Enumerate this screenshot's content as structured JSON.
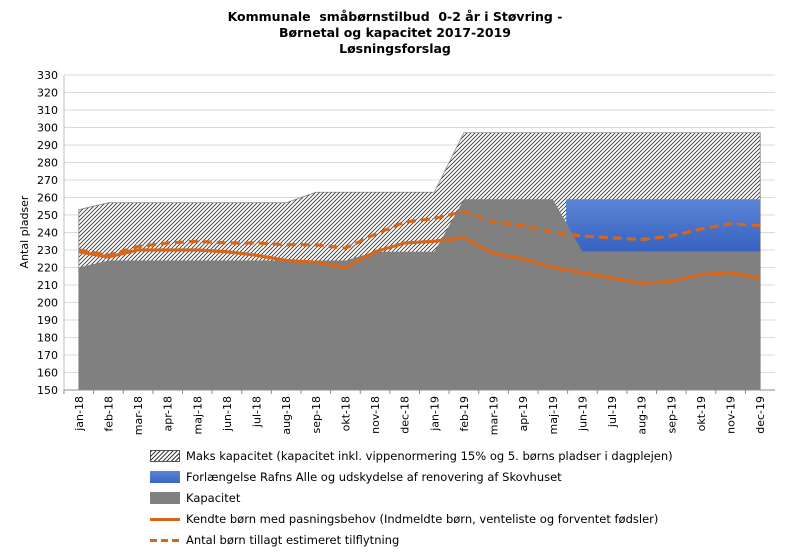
{
  "title_lines": [
    "Kommunale  småbørnstilbud  0-2 år i Støvring -",
    "Børnetal og kapacitet 2017-2019",
    "Løsningsforslag"
  ],
  "chart_data": {
    "type": "area",
    "title": "Kommunale småbørnstilbud 0-2 år i Støvring - Børnetal og kapacitet 2017-2019 Løsningsforslag",
    "ylabel": "Antal pladser",
    "xlabel": "",
    "ylim": [
      150,
      330
    ],
    "yticks": [
      150,
      160,
      170,
      180,
      190,
      200,
      210,
      220,
      230,
      240,
      250,
      260,
      270,
      280,
      290,
      300,
      310,
      320,
      330
    ],
    "grid": true,
    "legend_position": "bottom",
    "categories": [
      "jan-18",
      "feb-18",
      "mar-18",
      "apr-18",
      "maj-18",
      "jun-18",
      "jul-18",
      "aug-18",
      "sep-18",
      "okt-18",
      "nov-18",
      "dec-18",
      "jan-19",
      "feb-19",
      "mar-19",
      "apr-19",
      "maj-19",
      "jun-19",
      "jul-19",
      "aug-19",
      "sep-19",
      "okt-19",
      "nov-19",
      "dec-19"
    ],
    "series": [
      {
        "name": "Maks kapacitet (kapacitet inkl. vippenormering 15% og 5. børns pladser i dagplejen)",
        "kind": "area-hatched",
        "color": "#3a3a3a",
        "values": [
          253,
          257,
          257,
          257,
          257,
          257,
          257,
          257,
          263,
          263,
          263,
          263,
          263,
          297,
          297,
          297,
          297,
          297,
          297,
          297,
          297,
          297,
          297,
          297
        ]
      },
      {
        "name": "Forlængelse Rafns Alle og udskydelse af renovering af Skovhuset",
        "kind": "area-band",
        "color": "#4472c4",
        "values": [
          0,
          0,
          0,
          0,
          0,
          0,
          0,
          0,
          0,
          0,
          0,
          0,
          0,
          0,
          0,
          0,
          0,
          30,
          30,
          30,
          30,
          30,
          30,
          30
        ],
        "band_base": [
          229,
          229,
          229,
          229,
          229,
          229,
          229,
          229,
          229,
          229,
          229,
          229,
          229,
          229,
          229,
          229,
          229,
          229,
          229,
          229,
          229,
          229,
          229,
          229
        ]
      },
      {
        "name": "Kapacitet",
        "kind": "area",
        "color": "#808080",
        "values": [
          220,
          224,
          224,
          224,
          224,
          224,
          224,
          224,
          224,
          224,
          229,
          229,
          229,
          259,
          259,
          259,
          259,
          229,
          229,
          229,
          229,
          229,
          229,
          229
        ]
      },
      {
        "name": "Kendte børn med pasningsbehov (Indmeldte børn, venteliste og forventet fødsler)",
        "kind": "line",
        "color": "#d8661a",
        "values": [
          229,
          226,
          230,
          230,
          230,
          229,
          227,
          224,
          223,
          220,
          229,
          234,
          235,
          237,
          228,
          225,
          220,
          217,
          214,
          211,
          212,
          216,
          217,
          214
        ]
      },
      {
        "name": "Antal børn tillagt estimeret tilflytning",
        "kind": "line-dashed",
        "color": "#d8661a",
        "values": [
          230,
          227,
          232,
          234,
          235,
          234,
          234,
          233,
          233,
          231,
          239,
          246,
          248,
          252,
          246,
          244,
          240,
          238,
          237,
          236,
          238,
          242,
          245,
          244
        ]
      }
    ]
  }
}
